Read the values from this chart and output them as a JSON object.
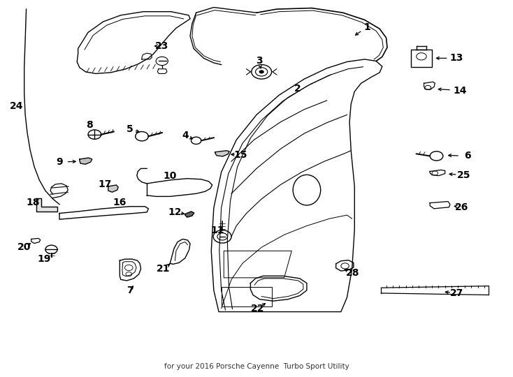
{
  "bg_color": "#ffffff",
  "line_color": "#000000",
  "figsize": [
    7.34,
    5.4
  ],
  "dpi": 100,
  "subtitle": "for your 2016 Porsche Cayenne  Turbo Sport Utility"
}
